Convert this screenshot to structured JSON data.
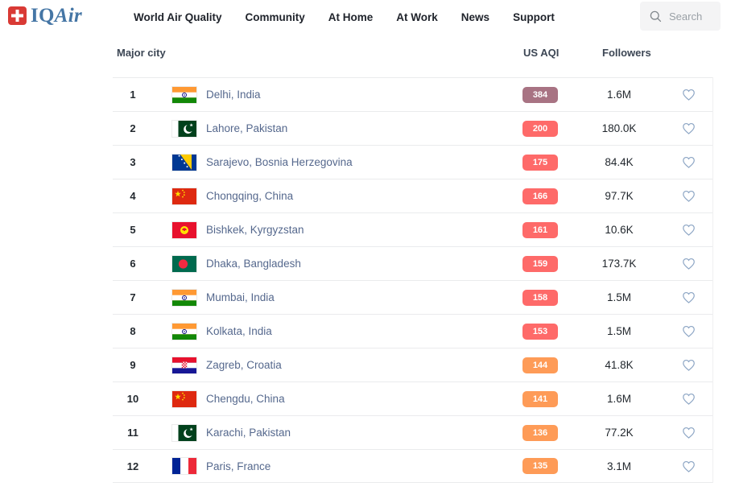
{
  "brand": {
    "iq": "IQ",
    "air": "Air",
    "logo_color": "#4576a5",
    "cross_color": "#d93a35"
  },
  "nav": {
    "items": [
      {
        "label": "World Air Quality"
      },
      {
        "label": "Community"
      },
      {
        "label": "At Home"
      },
      {
        "label": "At Work"
      },
      {
        "label": "News"
      },
      {
        "label": "Support"
      }
    ]
  },
  "search": {
    "placeholder": "Search"
  },
  "icons": {
    "logo_cross": "swiss-cross",
    "search": "magnifier",
    "favorite": "heart-outline"
  },
  "colors": {
    "aqi_hazardous": "#a87383",
    "aqi_unhealthy": "#fe6a69",
    "aqi_unhealthy_sensitive": "#fe9b57",
    "heart_stroke": "#8ca5c4",
    "row_border": "#eaebed"
  },
  "table": {
    "headers": {
      "city": "Major city",
      "aqi": "US AQI",
      "followers": "Followers"
    },
    "rows": [
      {
        "rank": "1",
        "flag": "in",
        "city": "Delhi, India",
        "aqi": "384",
        "aqi_color": "#a87383",
        "followers": "1.6M"
      },
      {
        "rank": "2",
        "flag": "pk",
        "city": "Lahore, Pakistan",
        "aqi": "200",
        "aqi_color": "#fe6a69",
        "followers": "180.0K"
      },
      {
        "rank": "3",
        "flag": "ba",
        "city": "Sarajevo, Bosnia Herzegovina",
        "aqi": "175",
        "aqi_color": "#fe6a69",
        "followers": "84.4K"
      },
      {
        "rank": "4",
        "flag": "cn",
        "city": "Chongqing, China",
        "aqi": "166",
        "aqi_color": "#fe6a69",
        "followers": "97.7K"
      },
      {
        "rank": "5",
        "flag": "kg",
        "city": "Bishkek, Kyrgyzstan",
        "aqi": "161",
        "aqi_color": "#fe6a69",
        "followers": "10.6K"
      },
      {
        "rank": "6",
        "flag": "bd",
        "city": "Dhaka, Bangladesh",
        "aqi": "159",
        "aqi_color": "#fe6a69",
        "followers": "173.7K"
      },
      {
        "rank": "7",
        "flag": "in",
        "city": "Mumbai, India",
        "aqi": "158",
        "aqi_color": "#fe6a69",
        "followers": "1.5M"
      },
      {
        "rank": "8",
        "flag": "in",
        "city": "Kolkata, India",
        "aqi": "153",
        "aqi_color": "#fe6a69",
        "followers": "1.5M"
      },
      {
        "rank": "9",
        "flag": "hr",
        "city": "Zagreb, Croatia",
        "aqi": "144",
        "aqi_color": "#fe9b57",
        "followers": "41.8K"
      },
      {
        "rank": "10",
        "flag": "cn",
        "city": "Chengdu, China",
        "aqi": "141",
        "aqi_color": "#fe9b57",
        "followers": "1.6M"
      },
      {
        "rank": "11",
        "flag": "pk",
        "city": "Karachi, Pakistan",
        "aqi": "136",
        "aqi_color": "#fe9b57",
        "followers": "77.2K"
      },
      {
        "rank": "12",
        "flag": "fr",
        "city": "Paris, France",
        "aqi": "135",
        "aqi_color": "#fe9b57",
        "followers": "3.1M"
      }
    ]
  }
}
